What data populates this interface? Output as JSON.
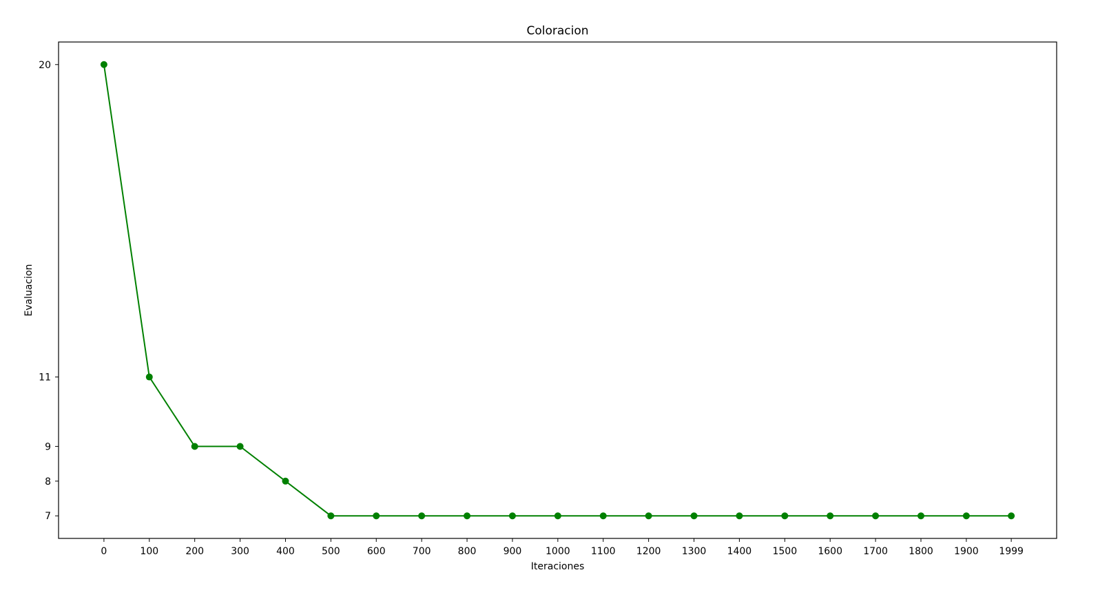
{
  "chart_data": {
    "type": "line",
    "title": "Coloracion",
    "xlabel": "Iteraciones",
    "ylabel": "Evaluacion",
    "x": [
      0,
      100,
      200,
      300,
      400,
      500,
      600,
      700,
      800,
      900,
      1000,
      1100,
      1200,
      1300,
      1400,
      1500,
      1600,
      1700,
      1800,
      1900,
      1999
    ],
    "x_tick_labels": [
      "0",
      "100",
      "200",
      "300",
      "400",
      "500",
      "600",
      "700",
      "800",
      "900",
      "1000",
      "1100",
      "1200",
      "1300",
      "1400",
      "1500",
      "1600",
      "1700",
      "1800",
      "1900",
      "1999"
    ],
    "series": [
      {
        "values": [
          20,
          11,
          9,
          9,
          8,
          7,
          7,
          7,
          7,
          7,
          7,
          7,
          7,
          7,
          7,
          7,
          7,
          7,
          7,
          7,
          7
        ],
        "color": "#008000",
        "marker": "circle"
      }
    ],
    "y_ticks": [
      7,
      8,
      9,
      11,
      20
    ],
    "y_tick_labels": [
      "7",
      "8",
      "9",
      "11",
      "20"
    ],
    "xlim": [
      -100,
      2099
    ],
    "ylim": [
      6.35,
      20.65
    ],
    "grid": false,
    "legend": "none"
  }
}
